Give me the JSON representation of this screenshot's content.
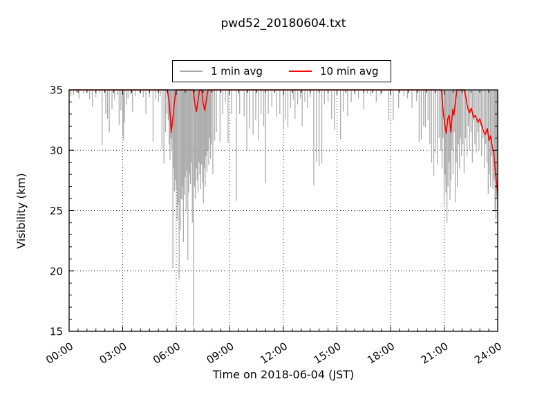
{
  "chart_data": {
    "type": "line",
    "title": "pwd52_20180604.txt",
    "xlabel": "Time on 2018-06-04 (JST)",
    "ylabel": "Visibility (km)",
    "xlim_hours": [
      0,
      24
    ],
    "ylim": [
      15,
      35
    ],
    "x_tick_hours": [
      0,
      3,
      6,
      9,
      12,
      15,
      18,
      21,
      24
    ],
    "x_tick_labels": [
      "00:00",
      "03:00",
      "06:00",
      "09:00",
      "12:00",
      "15:00",
      "18:00",
      "21:00",
      "24:00"
    ],
    "y_ticks": [
      15,
      20,
      25,
      30,
      35
    ],
    "x_minor_step_hours": 0.5,
    "y_minor_step": 1,
    "grid": {
      "style": "dotted",
      "x_hours": [
        3,
        6,
        9,
        12,
        15,
        18,
        21
      ],
      "y_values": [
        20,
        25,
        30
      ]
    },
    "frame_color": "#000000",
    "legend_position": "top-center-above-axes",
    "series": [
      {
        "name": "1 min avg",
        "color": "#a9a9a9",
        "render": "vertical-spikes-from-baseline",
        "baseline": 35,
        "points": [
          [
            0.1,
            34.5
          ],
          [
            0.25,
            34.6
          ],
          [
            0.42,
            34.8
          ],
          [
            0.55,
            34.3
          ],
          [
            0.8,
            34.7
          ],
          [
            1.0,
            34.8
          ],
          [
            1.15,
            34.2
          ],
          [
            1.3,
            33.6
          ],
          [
            1.5,
            34.4
          ],
          [
            1.7,
            34.7
          ],
          [
            1.85,
            30.4
          ],
          [
            2.05,
            33.0
          ],
          [
            2.15,
            32.6
          ],
          [
            2.25,
            31.5
          ],
          [
            2.4,
            33.4
          ],
          [
            2.55,
            34.2
          ],
          [
            2.7,
            34.6
          ],
          [
            2.8,
            32.1
          ],
          [
            2.9,
            33.3
          ],
          [
            3.0,
            31.2
          ],
          [
            3.05,
            30.8
          ],
          [
            3.1,
            32.3
          ],
          [
            3.2,
            33.8
          ],
          [
            3.3,
            34.3
          ],
          [
            3.45,
            34.6
          ],
          [
            3.55,
            33.2
          ],
          [
            3.7,
            34.5
          ],
          [
            3.95,
            34.7
          ],
          [
            4.15,
            34.4
          ],
          [
            4.3,
            33.0
          ],
          [
            4.5,
            34.4
          ],
          [
            4.7,
            30.7
          ],
          [
            4.85,
            34.2
          ],
          [
            5.0,
            34.0
          ],
          [
            5.1,
            34.5
          ],
          [
            5.2,
            30.1
          ],
          [
            5.31,
            28.9
          ],
          [
            5.4,
            31.5
          ],
          [
            5.48,
            33.0
          ],
          [
            5.55,
            32.5
          ],
          [
            5.6,
            30.5
          ],
          [
            5.65,
            29.2
          ],
          [
            5.7,
            31.0
          ],
          [
            5.75,
            30.0
          ],
          [
            5.81,
            20.2
          ],
          [
            5.86,
            28.5
          ],
          [
            5.9,
            26.6
          ],
          [
            5.95,
            27.5
          ],
          [
            6.0,
            26.7
          ],
          [
            6.05,
            24.2
          ],
          [
            6.1,
            25.5
          ],
          [
            6.16,
            19.3
          ],
          [
            6.22,
            23.4
          ],
          [
            6.27,
            26.0
          ],
          [
            6.32,
            25.9
          ],
          [
            6.36,
            27.0
          ],
          [
            6.4,
            22.4
          ],
          [
            6.45,
            26.3
          ],
          [
            6.5,
            27.8
          ],
          [
            6.55,
            25.0
          ],
          [
            6.6,
            28.3
          ],
          [
            6.65,
            20.9
          ],
          [
            6.7,
            26.5
          ],
          [
            6.75,
            28.0
          ],
          [
            6.8,
            27.2
          ],
          [
            6.85,
            29.0
          ],
          [
            6.9,
            24.0
          ],
          [
            6.96,
            15.4
          ],
          [
            7.02,
            27.0
          ],
          [
            7.07,
            26.0
          ],
          [
            7.12,
            28.5
          ],
          [
            7.17,
            27.5
          ],
          [
            7.22,
            26.5
          ],
          [
            7.27,
            29.0
          ],
          [
            7.32,
            28.0
          ],
          [
            7.37,
            26.8
          ],
          [
            7.42,
            28.8
          ],
          [
            7.47,
            27.3
          ],
          [
            7.52,
            25.6
          ],
          [
            7.57,
            28.5
          ],
          [
            7.62,
            27.0
          ],
          [
            7.67,
            29.5
          ],
          [
            7.72,
            28.2
          ],
          [
            7.77,
            30.0
          ],
          [
            7.82,
            28.8
          ],
          [
            7.87,
            31.0
          ],
          [
            7.92,
            29.3
          ],
          [
            7.97,
            30.5
          ],
          [
            8.05,
            28.0
          ],
          [
            8.15,
            30.8
          ],
          [
            8.25,
            31.5
          ],
          [
            8.45,
            30.7
          ],
          [
            8.6,
            33.0
          ],
          [
            8.75,
            34.0
          ],
          [
            8.9,
            30.6
          ],
          [
            9.1,
            33.0
          ],
          [
            9.36,
            25.8
          ],
          [
            9.55,
            33.0
          ],
          [
            9.8,
            32.8
          ],
          [
            9.95,
            30.0
          ],
          [
            10.1,
            31.8
          ],
          [
            10.3,
            31.3
          ],
          [
            10.45,
            32.5
          ],
          [
            10.6,
            30.8
          ],
          [
            10.75,
            33.0
          ],
          [
            10.9,
            32.0
          ],
          [
            11.0,
            27.3
          ],
          [
            11.15,
            33.0
          ],
          [
            11.35,
            33.6
          ],
          [
            11.6,
            32.8
          ],
          [
            11.8,
            33.0
          ],
          [
            12.0,
            31.7
          ],
          [
            12.1,
            32.5
          ],
          [
            12.25,
            31.9
          ],
          [
            12.4,
            33.5
          ],
          [
            12.55,
            34.2
          ],
          [
            12.65,
            32.6
          ],
          [
            12.8,
            33.8
          ],
          [
            12.95,
            34.3
          ],
          [
            13.05,
            32.0
          ],
          [
            13.2,
            34.0
          ],
          [
            13.35,
            33.5
          ],
          [
            13.5,
            34.4
          ],
          [
            13.7,
            27.1
          ],
          [
            13.85,
            29.1
          ],
          [
            14.0,
            28.7
          ],
          [
            14.15,
            28.9
          ],
          [
            14.3,
            33.8
          ],
          [
            14.5,
            34.0
          ],
          [
            14.7,
            32.6
          ],
          [
            14.85,
            31.7
          ],
          [
            15.2,
            30.9
          ],
          [
            15.35,
            33.2
          ],
          [
            15.6,
            32.8
          ],
          [
            15.8,
            34.0
          ],
          [
            16.0,
            34.6
          ],
          [
            16.2,
            34.3
          ],
          [
            16.5,
            33.4
          ],
          [
            16.7,
            34.7
          ],
          [
            16.9,
            34.5
          ],
          [
            17.2,
            34.0
          ],
          [
            17.45,
            34.6
          ],
          [
            17.9,
            32.5
          ],
          [
            18.15,
            32.5
          ],
          [
            18.45,
            33.5
          ],
          [
            18.75,
            34.5
          ],
          [
            18.95,
            34.3
          ],
          [
            19.2,
            33.5
          ],
          [
            19.45,
            34.1
          ],
          [
            19.6,
            30.7
          ],
          [
            19.72,
            30.9
          ],
          [
            19.85,
            32.0
          ],
          [
            19.95,
            31.9
          ],
          [
            20.1,
            32.5
          ],
          [
            20.2,
            30.5
          ],
          [
            20.3,
            29.0
          ],
          [
            20.42,
            27.9
          ],
          [
            20.52,
            29.8
          ],
          [
            20.62,
            28.8
          ],
          [
            20.72,
            31.0
          ],
          [
            20.82,
            30.0
          ],
          [
            20.88,
            28.5
          ],
          [
            20.93,
            31.0
          ],
          [
            21.0,
            25.5
          ],
          [
            21.05,
            28.0
          ],
          [
            21.1,
            26.5
          ],
          [
            21.16,
            24.0
          ],
          [
            21.22,
            27.0
          ],
          [
            21.28,
            29.0
          ],
          [
            21.33,
            25.9
          ],
          [
            21.38,
            27.5
          ],
          [
            21.44,
            30.0
          ],
          [
            21.5,
            28.0
          ],
          [
            21.56,
            31.5
          ],
          [
            21.62,
            25.7
          ],
          [
            21.68,
            29.0
          ],
          [
            21.74,
            27.0
          ],
          [
            21.8,
            30.5
          ],
          [
            21.86,
            28.5
          ],
          [
            21.92,
            31.0
          ],
          [
            21.98,
            29.5
          ],
          [
            22.05,
            30.5
          ],
          [
            22.12,
            28.1
          ],
          [
            22.2,
            31.0
          ],
          [
            22.28,
            29.5
          ],
          [
            22.35,
            32.0
          ],
          [
            22.42,
            30.0
          ],
          [
            22.5,
            31.5
          ],
          [
            22.58,
            29.0
          ],
          [
            22.65,
            32.5
          ],
          [
            22.72,
            30.5
          ],
          [
            22.8,
            29.8
          ],
          [
            22.88,
            31.5
          ],
          [
            22.95,
            30.0
          ],
          [
            23.02,
            32.0
          ],
          [
            23.1,
            29.5
          ],
          [
            23.18,
            31.0
          ],
          [
            23.25,
            28.5
          ],
          [
            23.33,
            30.5
          ],
          [
            23.4,
            29.0
          ],
          [
            23.47,
            26.4
          ],
          [
            23.53,
            28.0
          ],
          [
            23.6,
            27.0
          ],
          [
            23.67,
            29.5
          ],
          [
            23.73,
            26.8
          ],
          [
            23.8,
            27.5
          ],
          [
            23.85,
            25.1
          ],
          [
            23.9,
            24.3
          ],
          [
            23.95,
            26.0
          ],
          [
            24.0,
            24.5
          ]
        ]
      },
      {
        "name": "10 min avg",
        "color": "#ff0000",
        "render": "line",
        "points": [
          [
            0.0,
            35
          ],
          [
            5.5,
            35
          ],
          [
            5.62,
            33.8
          ],
          [
            5.72,
            31.5
          ],
          [
            5.82,
            32.8
          ],
          [
            5.92,
            34.3
          ],
          [
            6.0,
            35
          ],
          [
            6.95,
            35
          ],
          [
            7.05,
            33.8
          ],
          [
            7.13,
            33.2
          ],
          [
            7.22,
            34.1
          ],
          [
            7.3,
            35
          ],
          [
            7.43,
            35
          ],
          [
            7.5,
            33.9
          ],
          [
            7.6,
            33.3
          ],
          [
            7.7,
            34.3
          ],
          [
            7.78,
            35
          ],
          [
            20.85,
            35
          ],
          [
            20.95,
            33.2
          ],
          [
            21.05,
            32.0
          ],
          [
            21.12,
            31.4
          ],
          [
            21.2,
            32.6
          ],
          [
            21.28,
            32.9
          ],
          [
            21.38,
            31.5
          ],
          [
            21.48,
            33.4
          ],
          [
            21.55,
            32.9
          ],
          [
            21.65,
            34.2
          ],
          [
            21.72,
            35
          ],
          [
            22.15,
            35
          ],
          [
            22.3,
            33.6
          ],
          [
            22.42,
            33.1
          ],
          [
            22.52,
            33.5
          ],
          [
            22.65,
            32.7
          ],
          [
            22.75,
            32.9
          ],
          [
            22.9,
            32.3
          ],
          [
            23.0,
            32.6
          ],
          [
            23.18,
            31.7
          ],
          [
            23.3,
            31.3
          ],
          [
            23.42,
            31.8
          ],
          [
            23.52,
            30.8
          ],
          [
            23.6,
            31.2
          ],
          [
            23.7,
            30.2
          ],
          [
            23.78,
            29.8
          ],
          [
            23.85,
            28.6
          ],
          [
            23.92,
            27.6
          ],
          [
            24.0,
            26.4
          ]
        ]
      }
    ]
  }
}
